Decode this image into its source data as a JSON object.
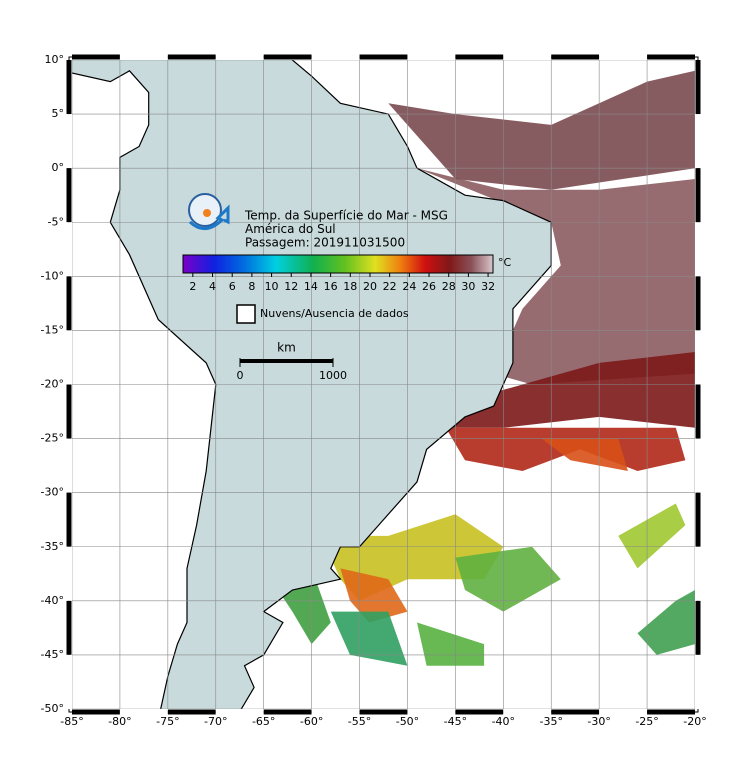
{
  "map": {
    "title_lines": [
      "Temp. da Superfície do Mar - MSG",
      "América do Sul",
      "Passagem: 201911031500"
    ],
    "lonlim": [
      -85,
      -20
    ],
    "latlim": [
      -50,
      10
    ],
    "lonticks": [
      {
        "value": -85,
        "label": "-85°"
      },
      {
        "value": -80,
        "label": "-80°"
      },
      {
        "value": -75,
        "label": "-75°"
      },
      {
        "value": -70,
        "label": "-70°"
      },
      {
        "value": -65,
        "label": "-65°"
      },
      {
        "value": -60,
        "label": "-60°"
      },
      {
        "value": -55,
        "label": "-55°"
      },
      {
        "value": -50,
        "label": "-50°"
      },
      {
        "value": -45,
        "label": "-45°"
      },
      {
        "value": -40,
        "label": "-40°"
      },
      {
        "value": -35,
        "label": "-35°"
      },
      {
        "value": -30,
        "label": "-30°"
      },
      {
        "value": -25,
        "label": "-25°"
      },
      {
        "value": -20,
        "label": "-20°"
      }
    ],
    "latticks": [
      {
        "value": 10,
        "label": "10°"
      },
      {
        "value": 5,
        "label": "5°"
      },
      {
        "value": 0,
        "label": "0°"
      },
      {
        "value": -5,
        "label": "-5°"
      },
      {
        "value": -10,
        "label": "-10°"
      },
      {
        "value": -15,
        "label": "-15°"
      },
      {
        "value": -20,
        "label": "-20°"
      },
      {
        "value": -25,
        "label": "-25°"
      },
      {
        "value": -30,
        "label": "-30°"
      },
      {
        "value": -35,
        "label": "-35°"
      },
      {
        "value": -40,
        "label": "-40°"
      },
      {
        "value": -45,
        "label": "-45°"
      },
      {
        "value": -50,
        "label": "-50°"
      }
    ],
    "colorbar": {
      "unit": "°C",
      "range": [
        1,
        32.5
      ],
      "ticks": [
        2,
        4,
        6,
        8,
        10,
        12,
        14,
        16,
        18,
        20,
        22,
        24,
        26,
        28,
        30,
        32
      ]
    },
    "legend": "Nuvens/Ausencia de dados",
    "scale_bar": {
      "unit": "km",
      "ticks": [
        0,
        1000
      ]
    }
  }
}
